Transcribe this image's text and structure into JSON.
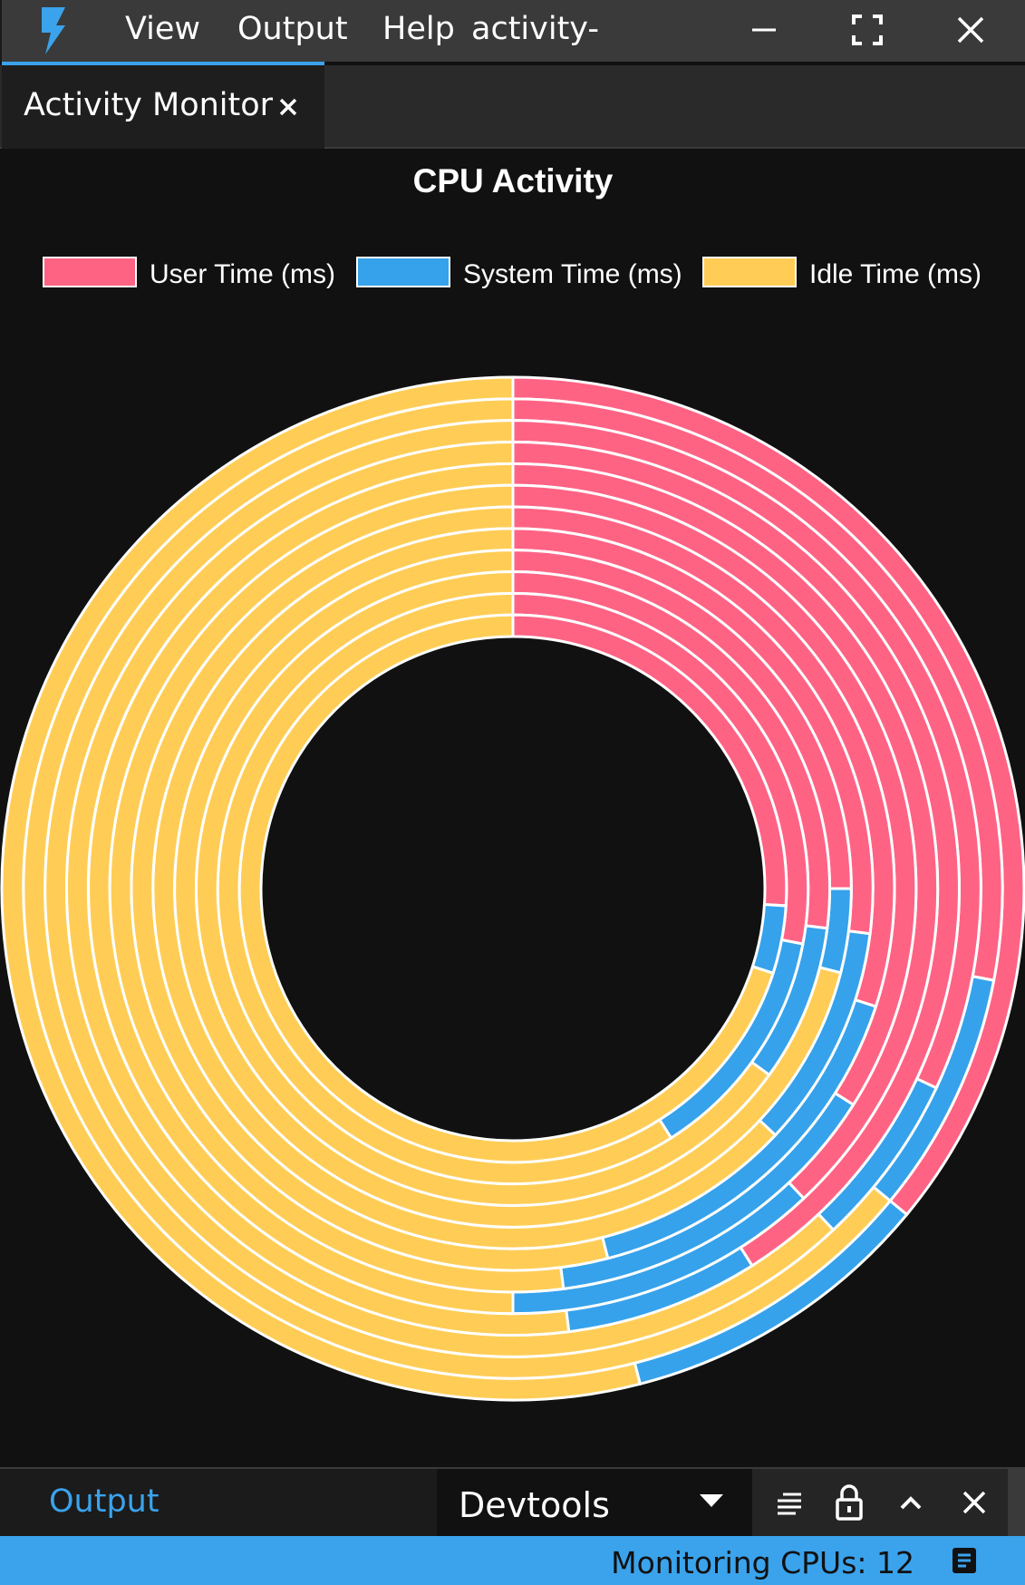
{
  "menu": {
    "items": [
      "View",
      "Output",
      "Help"
    ],
    "window_title": "activity-"
  },
  "colors": {
    "accent": "#3aa3ec",
    "user": "#ff6384",
    "system": "#36a2eb",
    "idle": "#ffcd56",
    "background": "#111111"
  },
  "icons": {
    "logo": "lightning-bolt-icon",
    "minimize": "minimize-icon",
    "maximize": "fullscreen-icon",
    "close": "close-icon"
  },
  "tab": {
    "label": "Activity Monitor",
    "close_symbol": "×"
  },
  "chart_data": {
    "type": "doughnut",
    "title": "CPU Activity",
    "legend_position": "top",
    "legend": [
      "User Time (ms)",
      "System Time (ms)",
      "Idle Time (ms)"
    ],
    "categories": [
      "User Time (ms)",
      "System Time (ms)",
      "Idle Time (ms)"
    ],
    "series": [
      {
        "values": [
          36,
          10,
          54
        ]
      },
      {
        "values": [
          28,
          8,
          64
        ]
      },
      {
        "values": [
          32,
          6,
          62
        ]
      },
      {
        "values": [
          41,
          7,
          52
        ]
      },
      {
        "values": [
          38,
          12,
          50
        ]
      },
      {
        "values": [
          34,
          14,
          52
        ]
      },
      {
        "values": [
          30,
          16,
          54
        ]
      },
      {
        "values": [
          27,
          10,
          63
        ]
      },
      {
        "values": [
          25,
          4,
          71
        ]
      },
      {
        "values": [
          27,
          8,
          65
        ]
      },
      {
        "values": [
          28,
          13,
          59
        ]
      },
      {
        "values": [
          26,
          4,
          70
        ]
      }
    ]
  },
  "panel": {
    "output_tab": "Output",
    "devtools_label": "Devtools"
  },
  "status": {
    "text": "Monitoring CPUs: 12"
  }
}
